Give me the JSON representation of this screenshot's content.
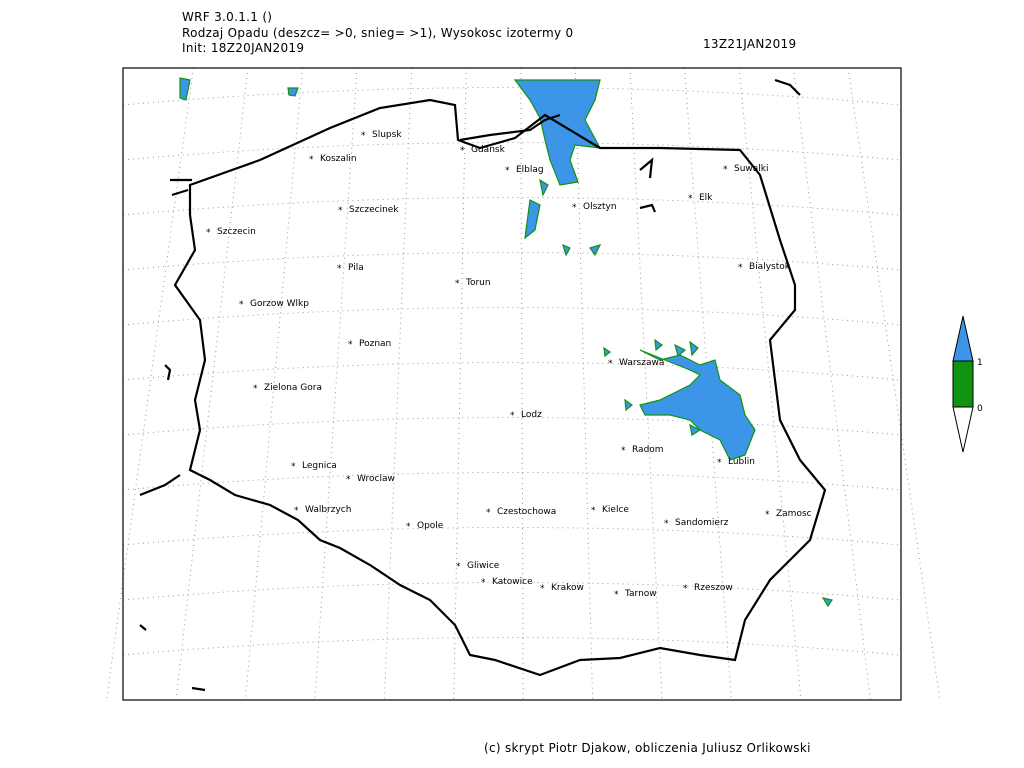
{
  "header": {
    "model": "WRF 3.0.1.1 ()",
    "title": "Rodzaj Opadu (deszcz= >0, snieg= >1), Wysokosc izotermy 0",
    "init": "Init: 18Z20JAN2019",
    "valid": "13Z21JAN2019"
  },
  "footer": {
    "credit": "(c) skrypt Piotr Djakow, obliczenia Juliusz Orlikowski"
  },
  "legend": {
    "labels": [
      "1",
      "0"
    ],
    "colors": {
      "snow": "#3d95e8",
      "rain": "#119211",
      "none": "#ffffff"
    }
  },
  "cities": [
    "Slupsk",
    "Koszalin",
    "Gdansk",
    "Elblag",
    "Suwalki",
    "Szczecinek",
    "Olsztyn",
    "Elk",
    "Szczecin",
    "Pila",
    "Torun",
    "Bialystok",
    "Gorzow Wlkp",
    "Poznan",
    "Warszawa",
    "Zielona Gora",
    "Lodz",
    "Radom",
    "Lublin",
    "Legnica",
    "Wroclaw",
    "Walbrzych",
    "Opole",
    "Czestochowa",
    "Kielce",
    "Sandomierz",
    "Zamosc",
    "Gliwice",
    "Katowice",
    "Krakow",
    "Tarnow",
    "Rzeszow"
  ]
}
